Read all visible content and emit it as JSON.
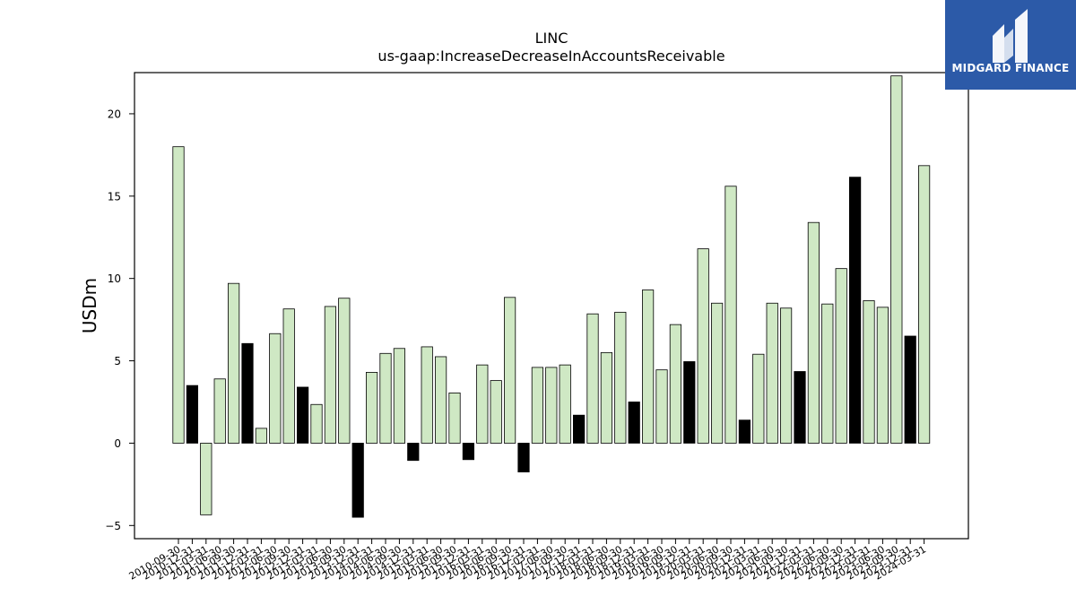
{
  "brand": {
    "name": "MIDGARD FINANCE",
    "color": "#2c5aa8"
  },
  "chart_data": {
    "type": "bar",
    "title": "LINC",
    "subtitle": "us-gaap:IncreaseDecreaseInAccountsReceivable",
    "xlabel": "",
    "ylabel": "USDm",
    "ylim": [
      -5.8,
      22.5
    ],
    "yticks": [
      -5,
      0,
      5,
      10,
      15,
      20
    ],
    "grid": false,
    "colors": {
      "default": "#cfe8c4",
      "fourth_quarter": "#000000",
      "edge": "#000000"
    },
    "categories": [
      "2010-09-30",
      "2010-12-31",
      "2011-03-31",
      "2011-06-30",
      "2011-09-30",
      "2011-12-31",
      "2012-03-31",
      "2012-06-30",
      "2012-09-30",
      "2012-12-31",
      "2013-03-31",
      "2013-06-30",
      "2013-09-30",
      "2013-12-31",
      "2014-03-31",
      "2014-06-30",
      "2014-09-30",
      "2014-12-31",
      "2015-03-31",
      "2015-06-30",
      "2015-09-30",
      "2015-12-31",
      "2016-03-31",
      "2016-06-30",
      "2016-09-30",
      "2016-12-31",
      "2017-03-31",
      "2017-06-30",
      "2017-09-30",
      "2017-12-31",
      "2018-03-31",
      "2018-06-30",
      "2018-09-30",
      "2018-12-31",
      "2019-03-31",
      "2019-06-30",
      "2019-09-30",
      "2019-12-31",
      "2020-03-31",
      "2020-06-30",
      "2020-09-30",
      "2020-12-31",
      "2021-03-31",
      "2021-06-30",
      "2021-09-30",
      "2021-12-31",
      "2022-03-31",
      "2022-06-30",
      "2022-09-30",
      "2022-12-31",
      "2023-03-31",
      "2023-06-30",
      "2023-09-30",
      "2023-12-31",
      "2024-03-31"
    ],
    "values": [
      18.0,
      3.5,
      -4.35,
      3.9,
      9.7,
      6.05,
      0.9,
      6.65,
      8.15,
      3.4,
      2.35,
      8.3,
      8.8,
      -4.5,
      4.3,
      5.45,
      5.75,
      -1.05,
      5.85,
      5.25,
      3.05,
      -1.0,
      4.75,
      3.8,
      8.85,
      -1.75,
      4.6,
      4.6,
      4.75,
      1.7,
      7.85,
      5.5,
      7.95,
      2.5,
      9.3,
      4.45,
      7.2,
      4.95,
      11.8,
      8.5,
      15.6,
      1.4,
      5.4,
      8.5,
      8.2,
      4.35,
      13.4,
      8.45,
      10.6,
      16.15,
      8.65,
      8.25,
      22.3,
      6.5,
      16.85
    ],
    "highlight": [
      false,
      true,
      false,
      false,
      false,
      true,
      false,
      false,
      false,
      true,
      false,
      false,
      false,
      true,
      false,
      false,
      false,
      true,
      false,
      false,
      false,
      true,
      false,
      false,
      false,
      true,
      false,
      false,
      false,
      true,
      false,
      false,
      false,
      true,
      false,
      false,
      false,
      true,
      false,
      false,
      false,
      true,
      false,
      false,
      false,
      true,
      false,
      false,
      false,
      true,
      false,
      false,
      false,
      true,
      false
    ]
  }
}
